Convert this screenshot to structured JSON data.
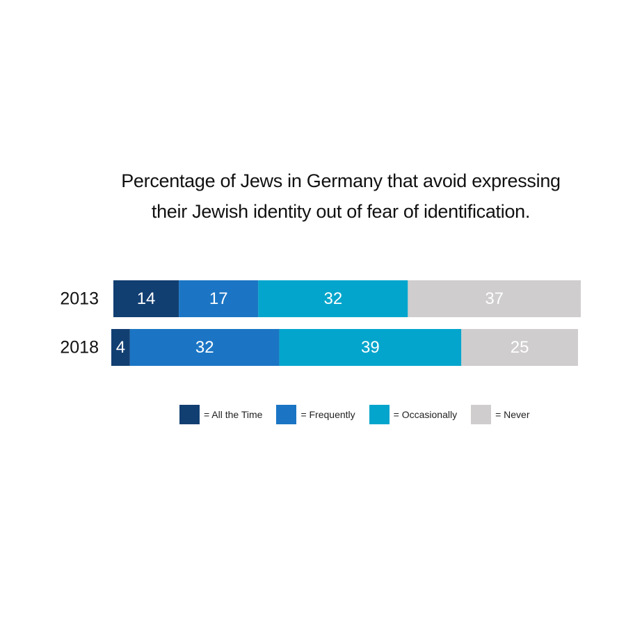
{
  "chart_data": {
    "type": "bar",
    "orientation": "horizontal",
    "stacked": true,
    "title_lines": [
      "Percentage of Jews in Germany that avoid expressing",
      "their Jewish identity out of fear of identification."
    ],
    "categories": [
      "2013",
      "2018"
    ],
    "series": [
      {
        "name": "All the Time",
        "legend_label": "= All the Time",
        "color": "#123f72",
        "values": [
          14,
          4
        ]
      },
      {
        "name": "Frequently",
        "legend_label": "= Frequently",
        "color": "#1b75c4",
        "values": [
          17,
          32
        ]
      },
      {
        "name": "Occasionally",
        "legend_label": "= Occasionally",
        "color": "#03a5cc",
        "values": [
          32,
          39
        ]
      },
      {
        "name": "Never",
        "legend_label": "= Never",
        "color": "#cfcdcd",
        "values": [
          37,
          25
        ]
      }
    ],
    "data_labels": true,
    "grid": false,
    "legend_position": "bottom"
  }
}
